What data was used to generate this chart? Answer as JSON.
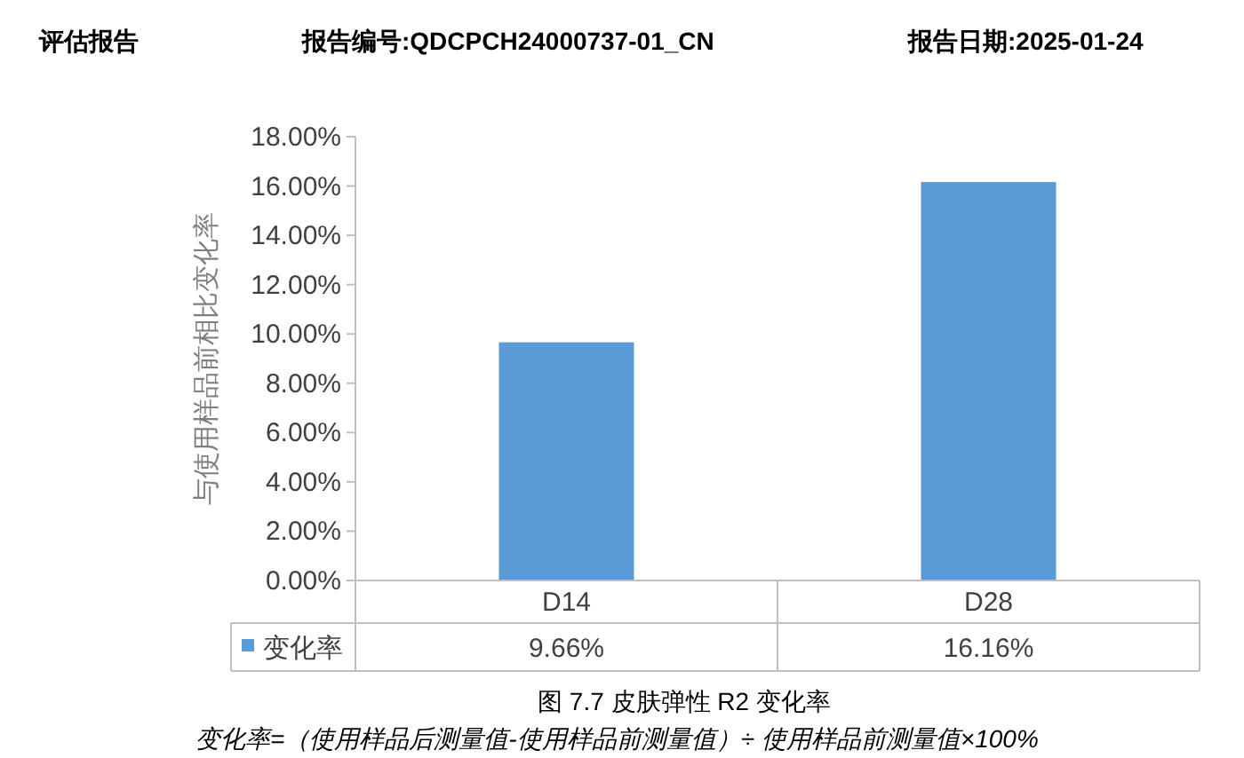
{
  "chart_data": {
    "type": "bar",
    "title": "图 7.7 皮肤弹性 R2 变化率",
    "ylabel": "与使用样品前相比变化率",
    "categories": [
      "D14",
      "D28"
    ],
    "series": [
      {
        "name": "变化率",
        "color": "#5b9bd5",
        "values": [
          9.66,
          16.16
        ],
        "value_labels": [
          "9.66%",
          "16.16%"
        ]
      }
    ],
    "ylim": [
      0,
      18
    ],
    "yticks": [
      {
        "value": 0,
        "label": "0.00%"
      },
      {
        "value": 2,
        "label": "2.00%"
      },
      {
        "value": 4,
        "label": "4.00%"
      },
      {
        "value": 6,
        "label": "6.00%"
      },
      {
        "value": 8,
        "label": "8.00%"
      },
      {
        "value": 10,
        "label": "10.00%"
      },
      {
        "value": 12,
        "label": "12.00%"
      },
      {
        "value": 14,
        "label": "14.00%"
      },
      {
        "value": 16,
        "label": "16.00%"
      },
      {
        "value": 18,
        "label": "18.00%"
      }
    ],
    "legend": "bottom",
    "annotations": [
      "评估报告",
      "报告编号:QDCPCH24000737-01_CN",
      "报告日期:2025-01-24",
      "变化率=（使用样品后测量值-使用样品前测量值）÷ 使用样品前测量值×100%"
    ]
  }
}
